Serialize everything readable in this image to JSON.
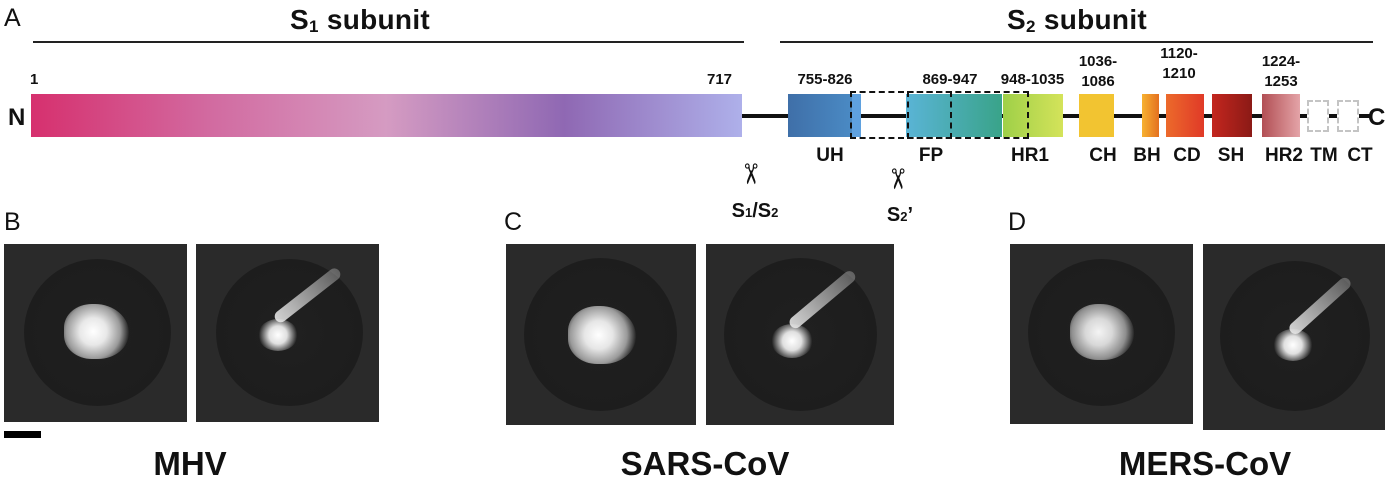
{
  "panels": {
    "a": "A",
    "b": "B",
    "c": "C",
    "d": "D"
  },
  "s1_title": "S1 subunit",
  "s1": {
    "letter": "S",
    "sub": "1",
    "rest": " subunit"
  },
  "s2": {
    "letter": "S",
    "sub": "2",
    "rest": " subunit"
  },
  "n_term": "N",
  "c_term": "C",
  "s1_start": "1",
  "s1_end": "717",
  "ranges": {
    "uh": "755-826",
    "fp": "869-947",
    "hr1": "948-1035",
    "ch": "1036-\n1086",
    "cd": "1120-\n1210",
    "hr2": "1224-\n1253"
  },
  "domains": [
    "UH",
    "FP",
    "HR1",
    "CH",
    "BH",
    "CD",
    "SH",
    "HR2",
    "TM",
    "CT"
  ],
  "cleavage": {
    "s1s2": {
      "icon": "scissors-icon",
      "a": "S",
      "a_sub": "1",
      "sep": "/S",
      "b_sub": "2"
    },
    "s2prime": {
      "icon": "scissors-icon",
      "a": "S",
      "a_sub": "2",
      "suffix": "’"
    }
  },
  "viruses": [
    "MHV",
    "SARS-CoV",
    "MERS-CoV"
  ],
  "colors": {
    "s1_gradient": [
      "#d6306e",
      "#d27aa5",
      "#d59bc2",
      "#8f68b3",
      "#aeb0ea"
    ],
    "uh": "#3f78b3",
    "fp": "#57a9c8",
    "hr1": "#a9d94a",
    "ch": "#f0c02f",
    "bh": "#f08c26",
    "cd": "#e2452c",
    "sh": "#b0201e",
    "hr2": "#c9737a",
    "em_background": "#2b2b2b"
  }
}
